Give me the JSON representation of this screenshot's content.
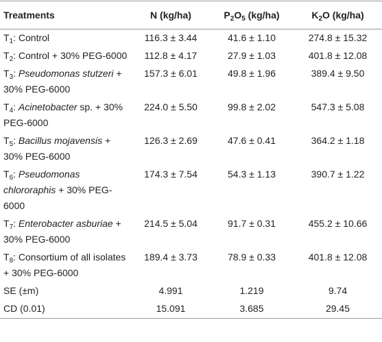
{
  "table": {
    "header": [
      [
        {
          "t": "Treatments"
        }
      ],
      [
        {
          "t": "N (kg/ha)"
        }
      ],
      [
        {
          "t": "P"
        },
        {
          "t": "2",
          "f": "sub"
        },
        {
          "t": "O"
        },
        {
          "t": "5",
          "f": "sub"
        },
        {
          "t": " (kg/ha)"
        }
      ],
      [
        {
          "t": "K"
        },
        {
          "t": "2",
          "f": "sub"
        },
        {
          "t": "O (kg/ha)"
        }
      ]
    ],
    "rows": [
      [
        [
          {
            "t": "T"
          },
          {
            "t": "1",
            "f": "sub"
          },
          {
            "t": ": Control"
          }
        ],
        "116.3 ± 3.44",
        "41.6 ± 1.10",
        "274.8 ± 15.32"
      ],
      [
        [
          {
            "t": "T"
          },
          {
            "t": "2",
            "f": "sub"
          },
          {
            "t": ": Control + 30% PEG-6000"
          }
        ],
        "112.8 ± 4.17",
        "27.9 ± 1.03",
        "401.8 ± 12.08"
      ],
      [
        [
          {
            "t": "T"
          },
          {
            "t": "3",
            "f": "sub"
          },
          {
            "t": ": "
          },
          {
            "t": "Pseudomonas stutzeri",
            "f": "i"
          },
          {
            "t": " + 30% PEG-6000"
          }
        ],
        "157.3 ± 6.01",
        "49.8 ± 1.96",
        "389.4 ± 9.50"
      ],
      [
        [
          {
            "t": "T"
          },
          {
            "t": "4",
            "f": "sub"
          },
          {
            "t": ": "
          },
          {
            "t": "Acinetobacter",
            "f": "i"
          },
          {
            "t": " sp. + 30% PEG-6000"
          }
        ],
        "224.0 ± 5.50",
        "99.8 ± 2.02",
        "547.3 ± 5.08"
      ],
      [
        [
          {
            "t": "T"
          },
          {
            "t": "5",
            "f": "sub"
          },
          {
            "t": ": "
          },
          {
            "t": "Bacillus mojavensis",
            "f": "i"
          },
          {
            "t": " + 30% PEG-6000"
          }
        ],
        "126.3 ± 2.69",
        "47.6 ± 0.41",
        "364.2 ± 1.18"
      ],
      [
        [
          {
            "t": "T"
          },
          {
            "t": "6",
            "f": "sub"
          },
          {
            "t": ": "
          },
          {
            "t": "Pseudomonas chlororaphis",
            "f": "i"
          },
          {
            "t": " + 30% PEG-6000"
          }
        ],
        "174.3 ± 7.54",
        "54.3 ± 1.13",
        "390.7 ± 1.22"
      ],
      [
        [
          {
            "t": "T"
          },
          {
            "t": "7",
            "f": "sub"
          },
          {
            "t": ": "
          },
          {
            "t": "Enterobacter asburiae",
            "f": "i"
          },
          {
            "t": " + 30% PEG-6000"
          }
        ],
        "214.5 ± 5.04",
        "91.7 ± 0.31",
        "455.2 ± 10.66"
      ],
      [
        [
          {
            "t": "T"
          },
          {
            "t": "8",
            "f": "sub"
          },
          {
            "t": ": Consortium of all isolates + 30% PEG-6000"
          }
        ],
        "189.4 ± 3.73",
        "78.9 ± 0.33",
        "401.8 ± 12.08"
      ],
      [
        [
          {
            "t": "SE (±m)"
          }
        ],
        "4.991",
        "1.219",
        "9.74"
      ],
      [
        [
          {
            "t": "CD (0.01)"
          }
        ],
        "15.091",
        "3.685",
        "29.45"
      ]
    ]
  }
}
